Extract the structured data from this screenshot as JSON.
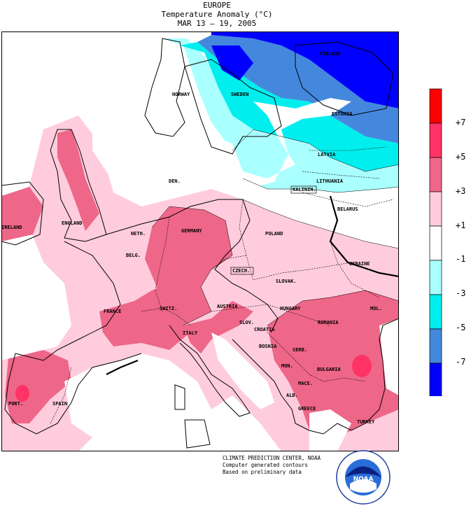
{
  "title": {
    "line1": "EUROPE",
    "line2": "Temperature Anomaly (°C)",
    "line3": "MAR 13 – 19, 2005"
  },
  "legend": {
    "ticks": [
      "+7",
      "+5",
      "+3",
      "+1",
      "-1",
      "-3",
      "-5",
      "-7"
    ],
    "colors": [
      "#ff0000",
      "#ff3366",
      "#ee6688",
      "#ffccdd",
      "#ffffff",
      "#aaffff",
      "#00eeee",
      "#4488dd",
      "#0000ff"
    ]
  },
  "countries": {
    "finland": "FINLAND",
    "norway": "NORWAY",
    "sweden": "SWEDEN",
    "estonia": "ESTONIA",
    "latvia": "LATVIA",
    "lithuania": "LITHUANIA",
    "kalinin": "KALININ.",
    "belarus": "BELARUS",
    "den": "DEN.",
    "england": "ENGLAND",
    "ireland": "IRELAND",
    "neth": "NETH.",
    "belg": "BELG.",
    "germany": "GERMANY",
    "poland": "POLAND",
    "czech": "CZECH.",
    "slovak": "SLOVAK.",
    "ukraine": "UKRAINE",
    "france": "FRANCE",
    "switz": "SWITZ.",
    "austria": "AUSTRIA",
    "hungary": "HUNGARY",
    "mol": "MOL.",
    "romania": "ROMANIA",
    "slov": "SLOV.",
    "croatia": "CROATIA",
    "italy": "ITALY",
    "bosnia": "BOSNIA",
    "serb": "SERB.",
    "mon": "MON.",
    "bulgaria": "BULGARIA",
    "mace": "MACE.",
    "alb": "ALB.",
    "greece": "GREECE",
    "turkey": "TURKEY",
    "port": "PORT.",
    "spain": "SPAIN"
  },
  "credit": {
    "line1": "CLIMATE PREDICTION CENTER, NOAA",
    "line2": "Computer generated contours",
    "line3": "Based on preliminary data"
  },
  "logo": {
    "text": "NOAA"
  }
}
